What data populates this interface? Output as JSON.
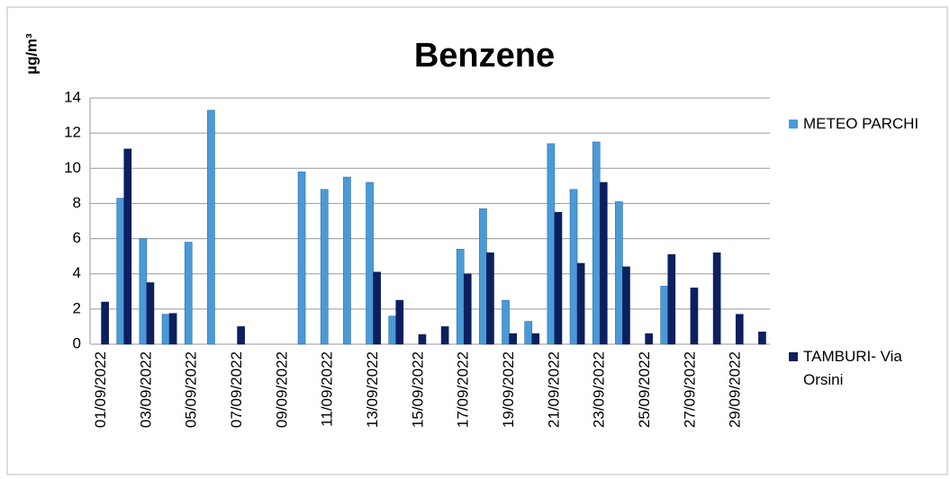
{
  "chart_data": {
    "type": "bar",
    "title": "Benzene",
    "y_label": "µg/m³",
    "categories": [
      "01/09/2022",
      null,
      "03/09/2022",
      null,
      "05/09/2022",
      null,
      "07/09/2022",
      null,
      "09/09/2022",
      null,
      "11/09/2022",
      null,
      "13/09/2022",
      null,
      "15/09/2022",
      null,
      "17/09/2022",
      null,
      "19/09/2022",
      null,
      "21/09/2022",
      null,
      "23/09/2022",
      null,
      "25/09/2022",
      null,
      "27/09/2022",
      null,
      "29/09/2022",
      null
    ],
    "series": [
      {
        "name": "METEO PARCHI",
        "color": "#4a9ad8",
        "values": [
          null,
          8.3,
          6.0,
          1.7,
          5.8,
          13.3,
          null,
          null,
          null,
          9.8,
          8.8,
          9.5,
          9.2,
          1.6,
          null,
          null,
          5.4,
          7.7,
          2.5,
          1.3,
          11.4,
          8.8,
          11.5,
          8.1,
          null,
          3.3,
          null,
          null,
          null,
          null
        ]
      },
      {
        "name": "TAMBURI- Via Orsini",
        "color": "#0c1f5e",
        "values": [
          2.4,
          11.1,
          3.5,
          1.75,
          null,
          null,
          1.0,
          null,
          null,
          null,
          null,
          null,
          4.1,
          2.5,
          0.55,
          1.0,
          4.0,
          5.2,
          0.6,
          0.6,
          7.5,
          4.6,
          9.2,
          4.4,
          0.6,
          5.1,
          3.2,
          5.2,
          1.7,
          0.7
        ]
      }
    ],
    "ylim": [
      0,
      14
    ],
    "yticks": [
      0,
      2,
      4,
      6,
      8,
      10,
      12,
      14
    ],
    "grid": true
  }
}
